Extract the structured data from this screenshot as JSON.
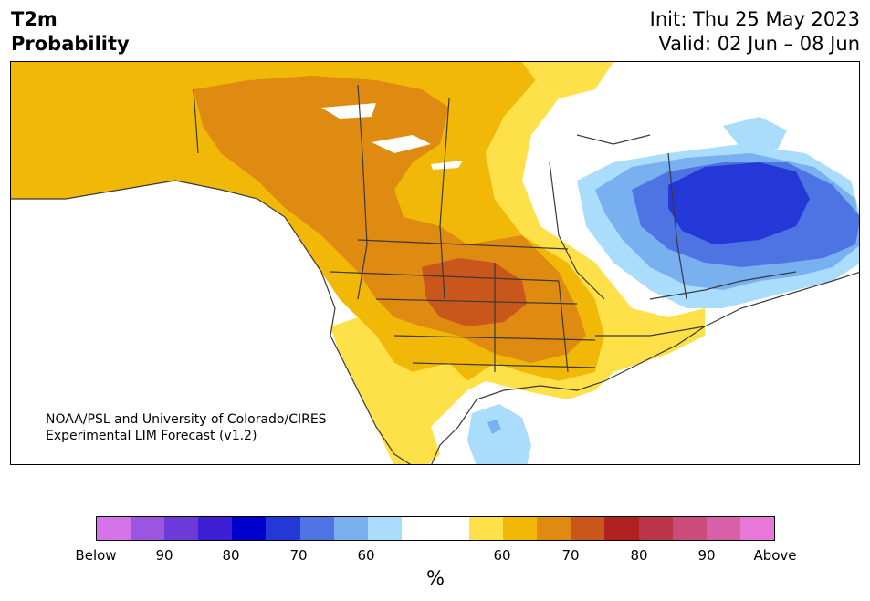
{
  "header": {
    "title_line1": "T2m",
    "title_line2": "Probability",
    "init": "Init: Thu 25 May 2023",
    "valid": "Valid: 02 Jun – 08 Jun"
  },
  "credit": {
    "line1": "NOAA/PSL and University of Colorado/CIRES",
    "line2": "Experimental LIM Forecast (v1.2)"
  },
  "colorbar": {
    "colors": [
      "#d474e8",
      "#9c55e0",
      "#6b3ad8",
      "#3d1ed4",
      "#0000cc",
      "#2438d8",
      "#4e74e4",
      "#78b0f0",
      "#aadcfc",
      "#ffffff",
      "#ffffff",
      "#fee148",
      "#f2b807",
      "#df8a10",
      "#c9561a",
      "#b02020",
      "#bc3448",
      "#cc4c7c",
      "#d860a8",
      "#e877d8"
    ],
    "tick_labels": [
      "Below",
      "90",
      "80",
      "70",
      "60",
      "60",
      "70",
      "80",
      "90",
      "Above"
    ],
    "unit": "%"
  },
  "map_colors": {
    "yellow": "#fee148",
    "gold": "#f2b807",
    "orange": "#df8a10",
    "dark_orange": "#c9561a",
    "light_blue": "#aadcfc",
    "mid_blue": "#78b0f0",
    "blue": "#4e74e4",
    "dark_blue": "#2438d8",
    "boundary": "#3a3a3a"
  }
}
